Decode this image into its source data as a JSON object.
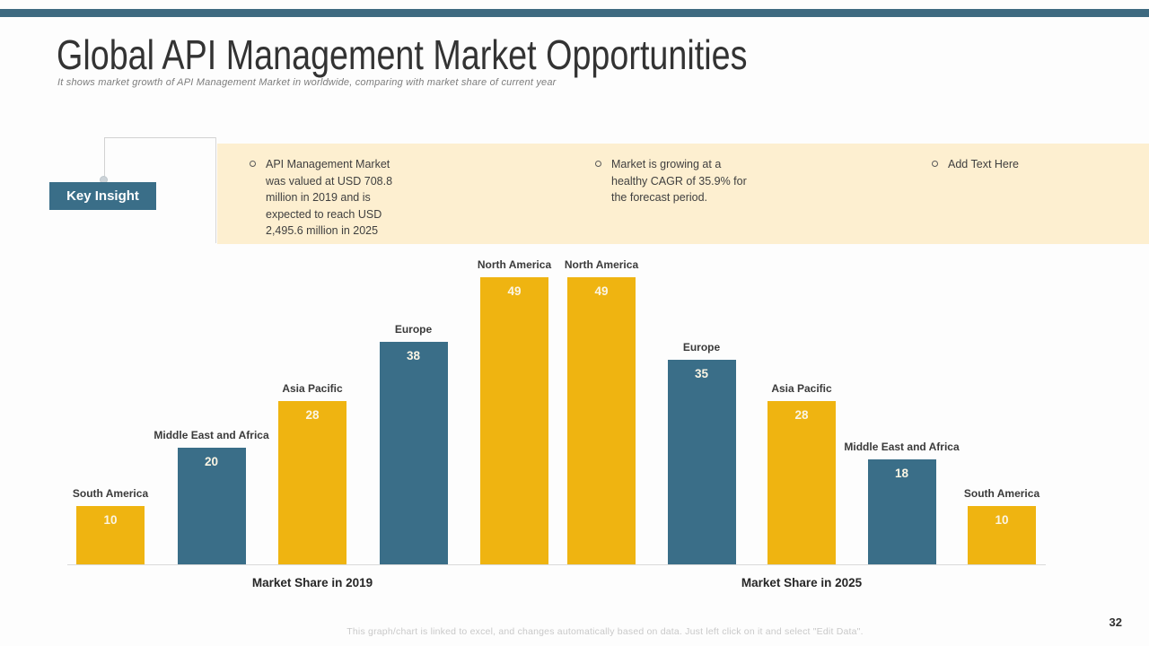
{
  "slide": {
    "title": "Global API Management Market Opportunities",
    "subtitle": "It shows market growth of API Management Market in worldwide, comparing with market share of current year",
    "page_number": "32",
    "footer_note": "This graph/chart is linked to excel, and changes automatically based on data. Just left click on it and select \"Edit Data\"."
  },
  "key_insight": {
    "label": "Key Insight",
    "bullets": [
      "API Management Market was valued at USD 708.8 million in 2019 and is expected to reach USD 2,495.6 million in 2025",
      "Market is growing at a healthy CAGR of 35.9% for the forecast period.",
      "Add Text Here"
    ]
  },
  "colors": {
    "top_bar": "#3e6a80",
    "accent_teal": "#3a6e88",
    "accent_yellow": "#efb411",
    "insight_panel_bg": "#fdefd0",
    "value_label": "#fbf5e4"
  },
  "chart_data": {
    "type": "bar",
    "title": "",
    "xlabel": "",
    "ylabel": "",
    "ylim": [
      0,
      50
    ],
    "grid": false,
    "legend": "none",
    "value_labels_position": "inside-top",
    "groups": [
      {
        "label": "Market Share in 2019",
        "bars": [
          {
            "category": "South America",
            "value": 10,
            "color": "yellow"
          },
          {
            "category": "Middle East and Africa",
            "value": 20,
            "color": "teal"
          },
          {
            "category": "Asia Pacific",
            "value": 28,
            "color": "yellow"
          },
          {
            "category": "Europe",
            "value": 38,
            "color": "teal"
          },
          {
            "category": "North America",
            "value": 49,
            "color": "yellow"
          }
        ]
      },
      {
        "label": "Market Share in 2025",
        "bars": [
          {
            "category": "North America",
            "value": 49,
            "color": "yellow"
          },
          {
            "category": "Europe",
            "value": 35,
            "color": "teal"
          },
          {
            "category": "Asia Pacific",
            "value": 28,
            "color": "yellow"
          },
          {
            "category": "Middle East and Africa",
            "value": 18,
            "color": "teal"
          },
          {
            "category": "South America",
            "value": 10,
            "color": "yellow"
          }
        ]
      }
    ]
  }
}
